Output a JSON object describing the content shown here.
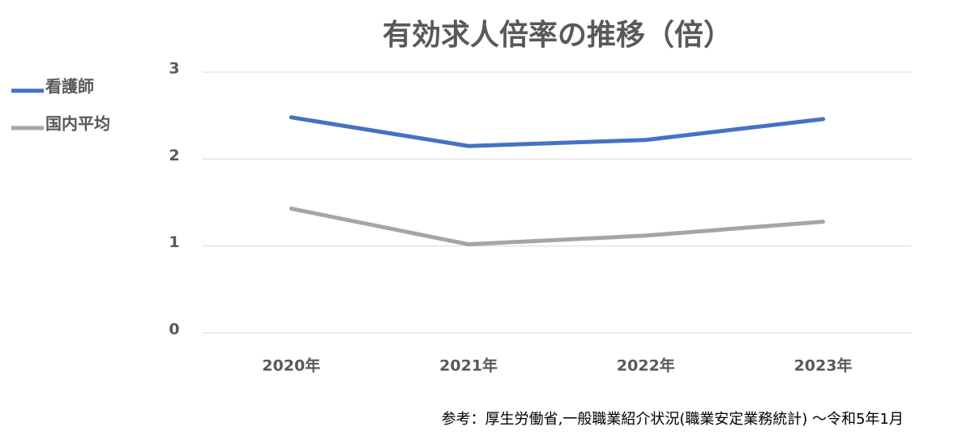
{
  "chart_data": {
    "type": "line",
    "title": "有効求人倍率の推移（倍）",
    "categories": [
      "2020年",
      "2021年",
      "2022年",
      "2023年"
    ],
    "series": [
      {
        "name": "看護師",
        "color": "#4472c4",
        "values": [
          2.48,
          2.15,
          2.22,
          2.46
        ]
      },
      {
        "name": "国内平均",
        "color": "#a5a5a5",
        "values": [
          1.43,
          1.02,
          1.12,
          1.28
        ]
      }
    ],
    "ylim": [
      0,
      3
    ],
    "yticks": [
      0,
      1,
      2,
      3
    ],
    "grid": true,
    "legend": "left",
    "note": "参考：厚生労働省,一般職業紹介状況(職業安定業務統計) ～令和5年1月"
  }
}
